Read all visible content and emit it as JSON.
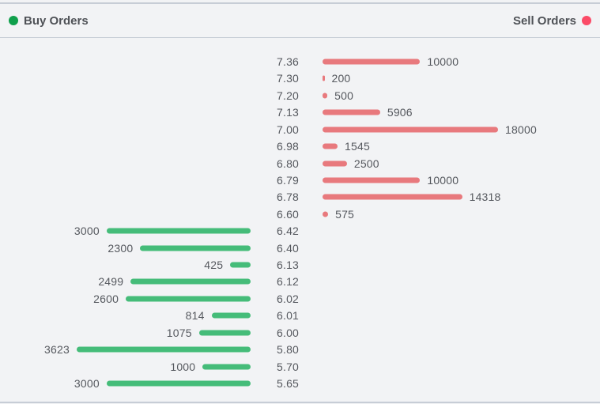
{
  "colors": {
    "background": "#F2F3F5",
    "border": "#C7CDD6",
    "text": "#55585E",
    "buy_bar": "#45BC79",
    "sell_bar": "#E8797D",
    "buy_legend_dot": "#10A04C",
    "sell_legend_dot": "#FB4B67"
  },
  "chart_data": {
    "type": "bar",
    "orientation": "horizontal",
    "layout_hint": "order-book depth tornado chart: sell bars extend right and buy bars extend left of a shared central price axis; each side is scaled independently to its own maximum quantity; quantity labels sit at bar tips",
    "legend": [
      {
        "label": "Buy Orders",
        "position": "top-left"
      },
      {
        "label": "Sell Orders",
        "position": "top-right"
      }
    ],
    "price_axis_position": "center",
    "grid": false,
    "rows": [
      {
        "price": "7.36",
        "side": "sell",
        "qty": 10000
      },
      {
        "price": "7.30",
        "side": "sell",
        "qty": 200
      },
      {
        "price": "7.20",
        "side": "sell",
        "qty": 500
      },
      {
        "price": "7.13",
        "side": "sell",
        "qty": 5906
      },
      {
        "price": "7.00",
        "side": "sell",
        "qty": 18000
      },
      {
        "price": "6.98",
        "side": "sell",
        "qty": 1545
      },
      {
        "price": "6.80",
        "side": "sell",
        "qty": 2500
      },
      {
        "price": "6.79",
        "side": "sell",
        "qty": 10000
      },
      {
        "price": "6.78",
        "side": "sell",
        "qty": 14318
      },
      {
        "price": "6.60",
        "side": "sell",
        "qty": 575
      },
      {
        "price": "6.42",
        "side": "buy",
        "qty": 3000
      },
      {
        "price": "6.40",
        "side": "buy",
        "qty": 2300
      },
      {
        "price": "6.13",
        "side": "buy",
        "qty": 425
      },
      {
        "price": "6.12",
        "side": "buy",
        "qty": 2499
      },
      {
        "price": "6.02",
        "side": "buy",
        "qty": 2600
      },
      {
        "price": "6.01",
        "side": "buy",
        "qty": 814
      },
      {
        "price": "6.00",
        "side": "buy",
        "qty": 1075
      },
      {
        "price": "5.80",
        "side": "buy",
        "qty": 3623
      },
      {
        "price": "5.70",
        "side": "buy",
        "qty": 1000
      },
      {
        "price": "5.65",
        "side": "buy",
        "qty": 3000
      }
    ]
  }
}
